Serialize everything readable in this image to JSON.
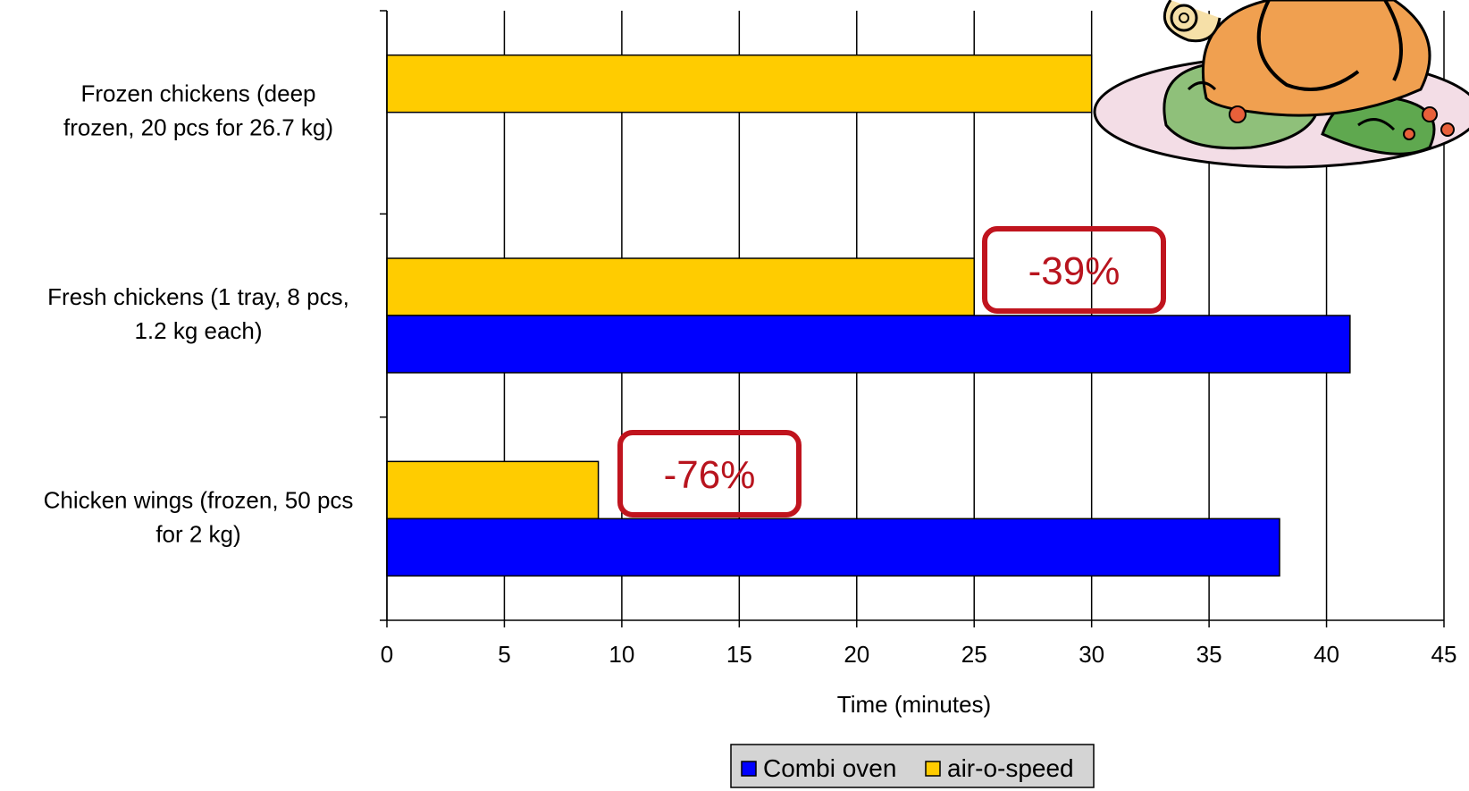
{
  "chart_data": {
    "type": "bar",
    "orientation": "horizontal",
    "categories": [
      "Frozen chickens (deep frozen, 20 pcs for 26.7 kg)",
      "Fresh chickens (1 tray, 8 pcs, 1.2 kg each)",
      "Chicken wings (frozen, 50 pcs for 2 kg)"
    ],
    "category_lines": [
      [
        "Frozen chickens (deep",
        "frozen, 20 pcs for 26.7 kg)"
      ],
      [
        "Fresh chickens (1 tray, 8 pcs,",
        "1.2 kg each)"
      ],
      [
        "Chicken wings (frozen, 50 pcs",
        "for 2 kg)"
      ]
    ],
    "series": [
      {
        "name": "Combi oven",
        "color": "#0000ff",
        "values": [
          null,
          41,
          38
        ]
      },
      {
        "name": "air-o-speed",
        "color": "#ffcc00",
        "values": [
          30,
          25,
          9
        ]
      }
    ],
    "xlabel": "Time (minutes)",
    "xlim": [
      0,
      45
    ],
    "xticks": [
      "0",
      "5",
      "10",
      "15",
      "20",
      "25",
      "30",
      "35",
      "40",
      "45"
    ],
    "grid": "vertical",
    "legend_position": "bottom",
    "annotations": [
      {
        "text": "-39%",
        "category": "Fresh chickens (1 tray, 8 pcs, 1.2 kg each)",
        "border_color": "#c0141e"
      },
      {
        "text": "-76%",
        "category": "Chicken wings (frozen, 50 pcs for 2 kg)",
        "border_color": "#c0141e"
      }
    ]
  },
  "decoration": {
    "icon": "roast-chicken-clipart-icon"
  }
}
